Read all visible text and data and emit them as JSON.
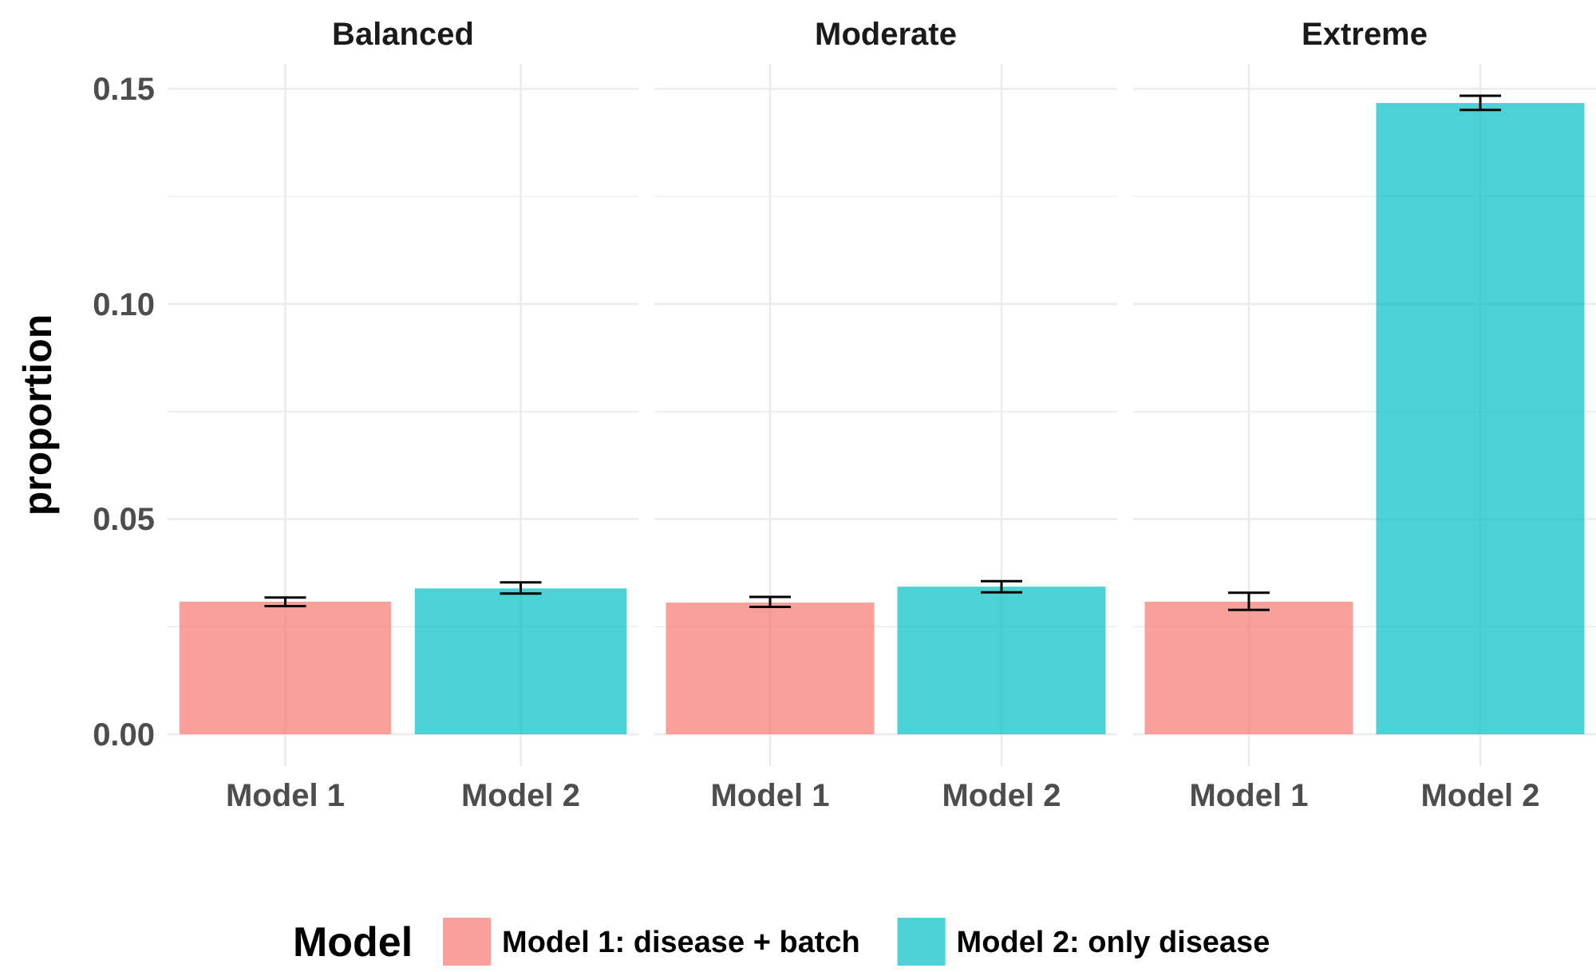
{
  "chart_data": [
    {
      "type": "bar",
      "title": "Balanced",
      "ylabel": "proportion",
      "categories": [
        "Model 1",
        "Model 2"
      ],
      "legend": "bottom",
      "legend_title": "Model",
      "grid": true,
      "ylim": [
        -0.0074,
        0.1558
      ],
      "yticks": [
        {
          "value": 0,
          "label": "0.00"
        },
        {
          "value": 0.025,
          "label": null
        },
        {
          "value": 0.05,
          "label": "0.05"
        },
        {
          "value": 0.075,
          "label": null
        },
        {
          "value": 0.1,
          "label": "0.10"
        },
        {
          "value": 0.125,
          "label": null
        },
        {
          "value": 0.15,
          "label": "0.15"
        }
      ],
      "series": [
        {
          "name": "Model 1: disease + batch",
          "color": "#f8766d",
          "values": [
            0.0308,
            null
          ],
          "errors": [
            [
              0.0298,
              0.0318
            ],
            null
          ]
        },
        {
          "name": "Model 2: only disease",
          "color": "#00bfc4",
          "values": [
            null,
            0.0339
          ],
          "errors": [
            null,
            [
              0.0327,
              0.0353
            ]
          ]
        }
      ]
    },
    {
      "type": "bar",
      "title": "Moderate",
      "categories": [
        "Model 1",
        "Model 2"
      ],
      "grid": true,
      "tick_labels": "x",
      "ylim": [
        -0.0074,
        0.1558
      ],
      "yticks": [
        0,
        0.025,
        0.05,
        0.075,
        0.1,
        0.125,
        0.15
      ],
      "series": [
        {
          "color": "#f8766d",
          "values": [
            0.0306,
            null
          ],
          "errors": [
            [
              0.0296,
              0.0319
            ],
            null
          ]
        },
        {
          "color": "#00bfc4",
          "values": [
            null,
            0.0343
          ],
          "errors": [
            null,
            [
              0.033,
              0.0356
            ]
          ]
        }
      ]
    },
    {
      "type": "bar",
      "title": "Extreme",
      "categories": [
        "Model 1",
        "Model 2"
      ],
      "grid": true,
      "tick_labels": "x",
      "ylim": [
        -0.0074,
        0.1558
      ],
      "yticks": [
        0,
        0.025,
        0.05,
        0.075,
        0.1,
        0.125,
        0.15
      ],
      "series": [
        {
          "color": "#f8766d",
          "values": [
            0.0308,
            null
          ],
          "errors": [
            [
              0.0289,
              0.0329
            ],
            null
          ]
        },
        {
          "color": "#00bfc4",
          "values": [
            null,
            0.1467
          ],
          "errors": [
            null,
            [
              0.1451,
              0.1484
            ]
          ]
        }
      ]
    }
  ]
}
